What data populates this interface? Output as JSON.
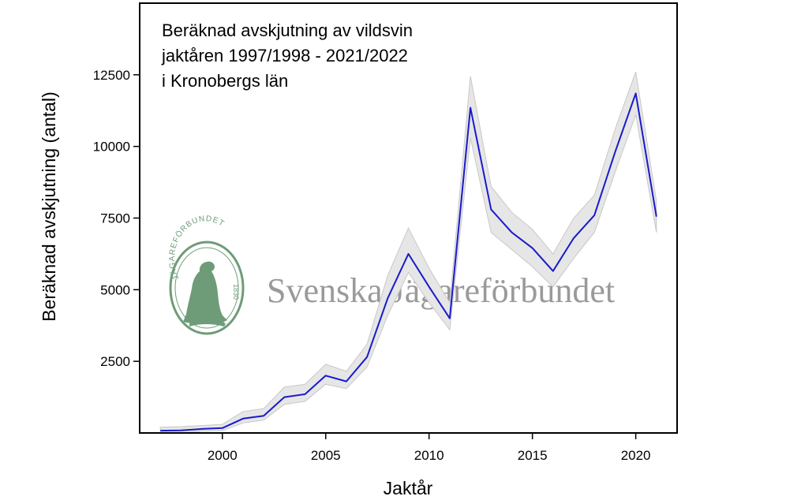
{
  "chart_data": {
    "type": "line",
    "title_lines": [
      "Beräknad avskjutning av vildsvin",
      "jaktåren 1997/1998 - 2021/2022",
      "i Kronobergs län"
    ],
    "xlabel": "Jaktår",
    "ylabel": "Beräknad avskjutning (antal)",
    "xlim": [
      1996,
      2022
    ],
    "ylim": [
      0,
      15000
    ],
    "xticks": [
      2000,
      2005,
      2010,
      2015,
      2020
    ],
    "yticks": [
      2500,
      5000,
      7500,
      10000,
      12500
    ],
    "grid": false,
    "line_color": "#1a1acc",
    "band_color": "#e6e6e6",
    "series": [
      {
        "x": [
          1997,
          1998,
          1999,
          2000,
          2001,
          2002,
          2003,
          2004,
          2005,
          2006,
          2007,
          2008,
          2009,
          2010,
          2011,
          2012,
          2013,
          2014,
          2015,
          2016,
          2017,
          2018,
          2019,
          2020,
          2021
        ],
        "y": [
          80,
          90,
          140,
          170,
          500,
          600,
          1250,
          1350,
          2000,
          1800,
          2650,
          4700,
          6250,
          5100,
          4000,
          11350,
          7800,
          7000,
          6450,
          5650,
          6800,
          7600,
          9800,
          11850,
          7550
        ],
        "lower": [
          0,
          0,
          60,
          80,
          350,
          450,
          1000,
          1100,
          1700,
          1550,
          2300,
          4100,
          5600,
          4550,
          3600,
          10300,
          7000,
          6400,
          5800,
          5100,
          6100,
          7000,
          9100,
          11100,
          7000
        ],
        "upper": [
          200,
          220,
          260,
          300,
          750,
          850,
          1600,
          1700,
          2400,
          2150,
          3100,
          5500,
          7150,
          5750,
          4550,
          12450,
          8600,
          7700,
          7100,
          6250,
          7500,
          8300,
          10600,
          12600,
          8100
        ]
      }
    ]
  },
  "watermark": {
    "organization": "Svenska Jägareförbundet",
    "seal_text": "JÄGAREFÖRBUNDET",
    "seal_year": "1830",
    "color": "#6e9c78"
  }
}
